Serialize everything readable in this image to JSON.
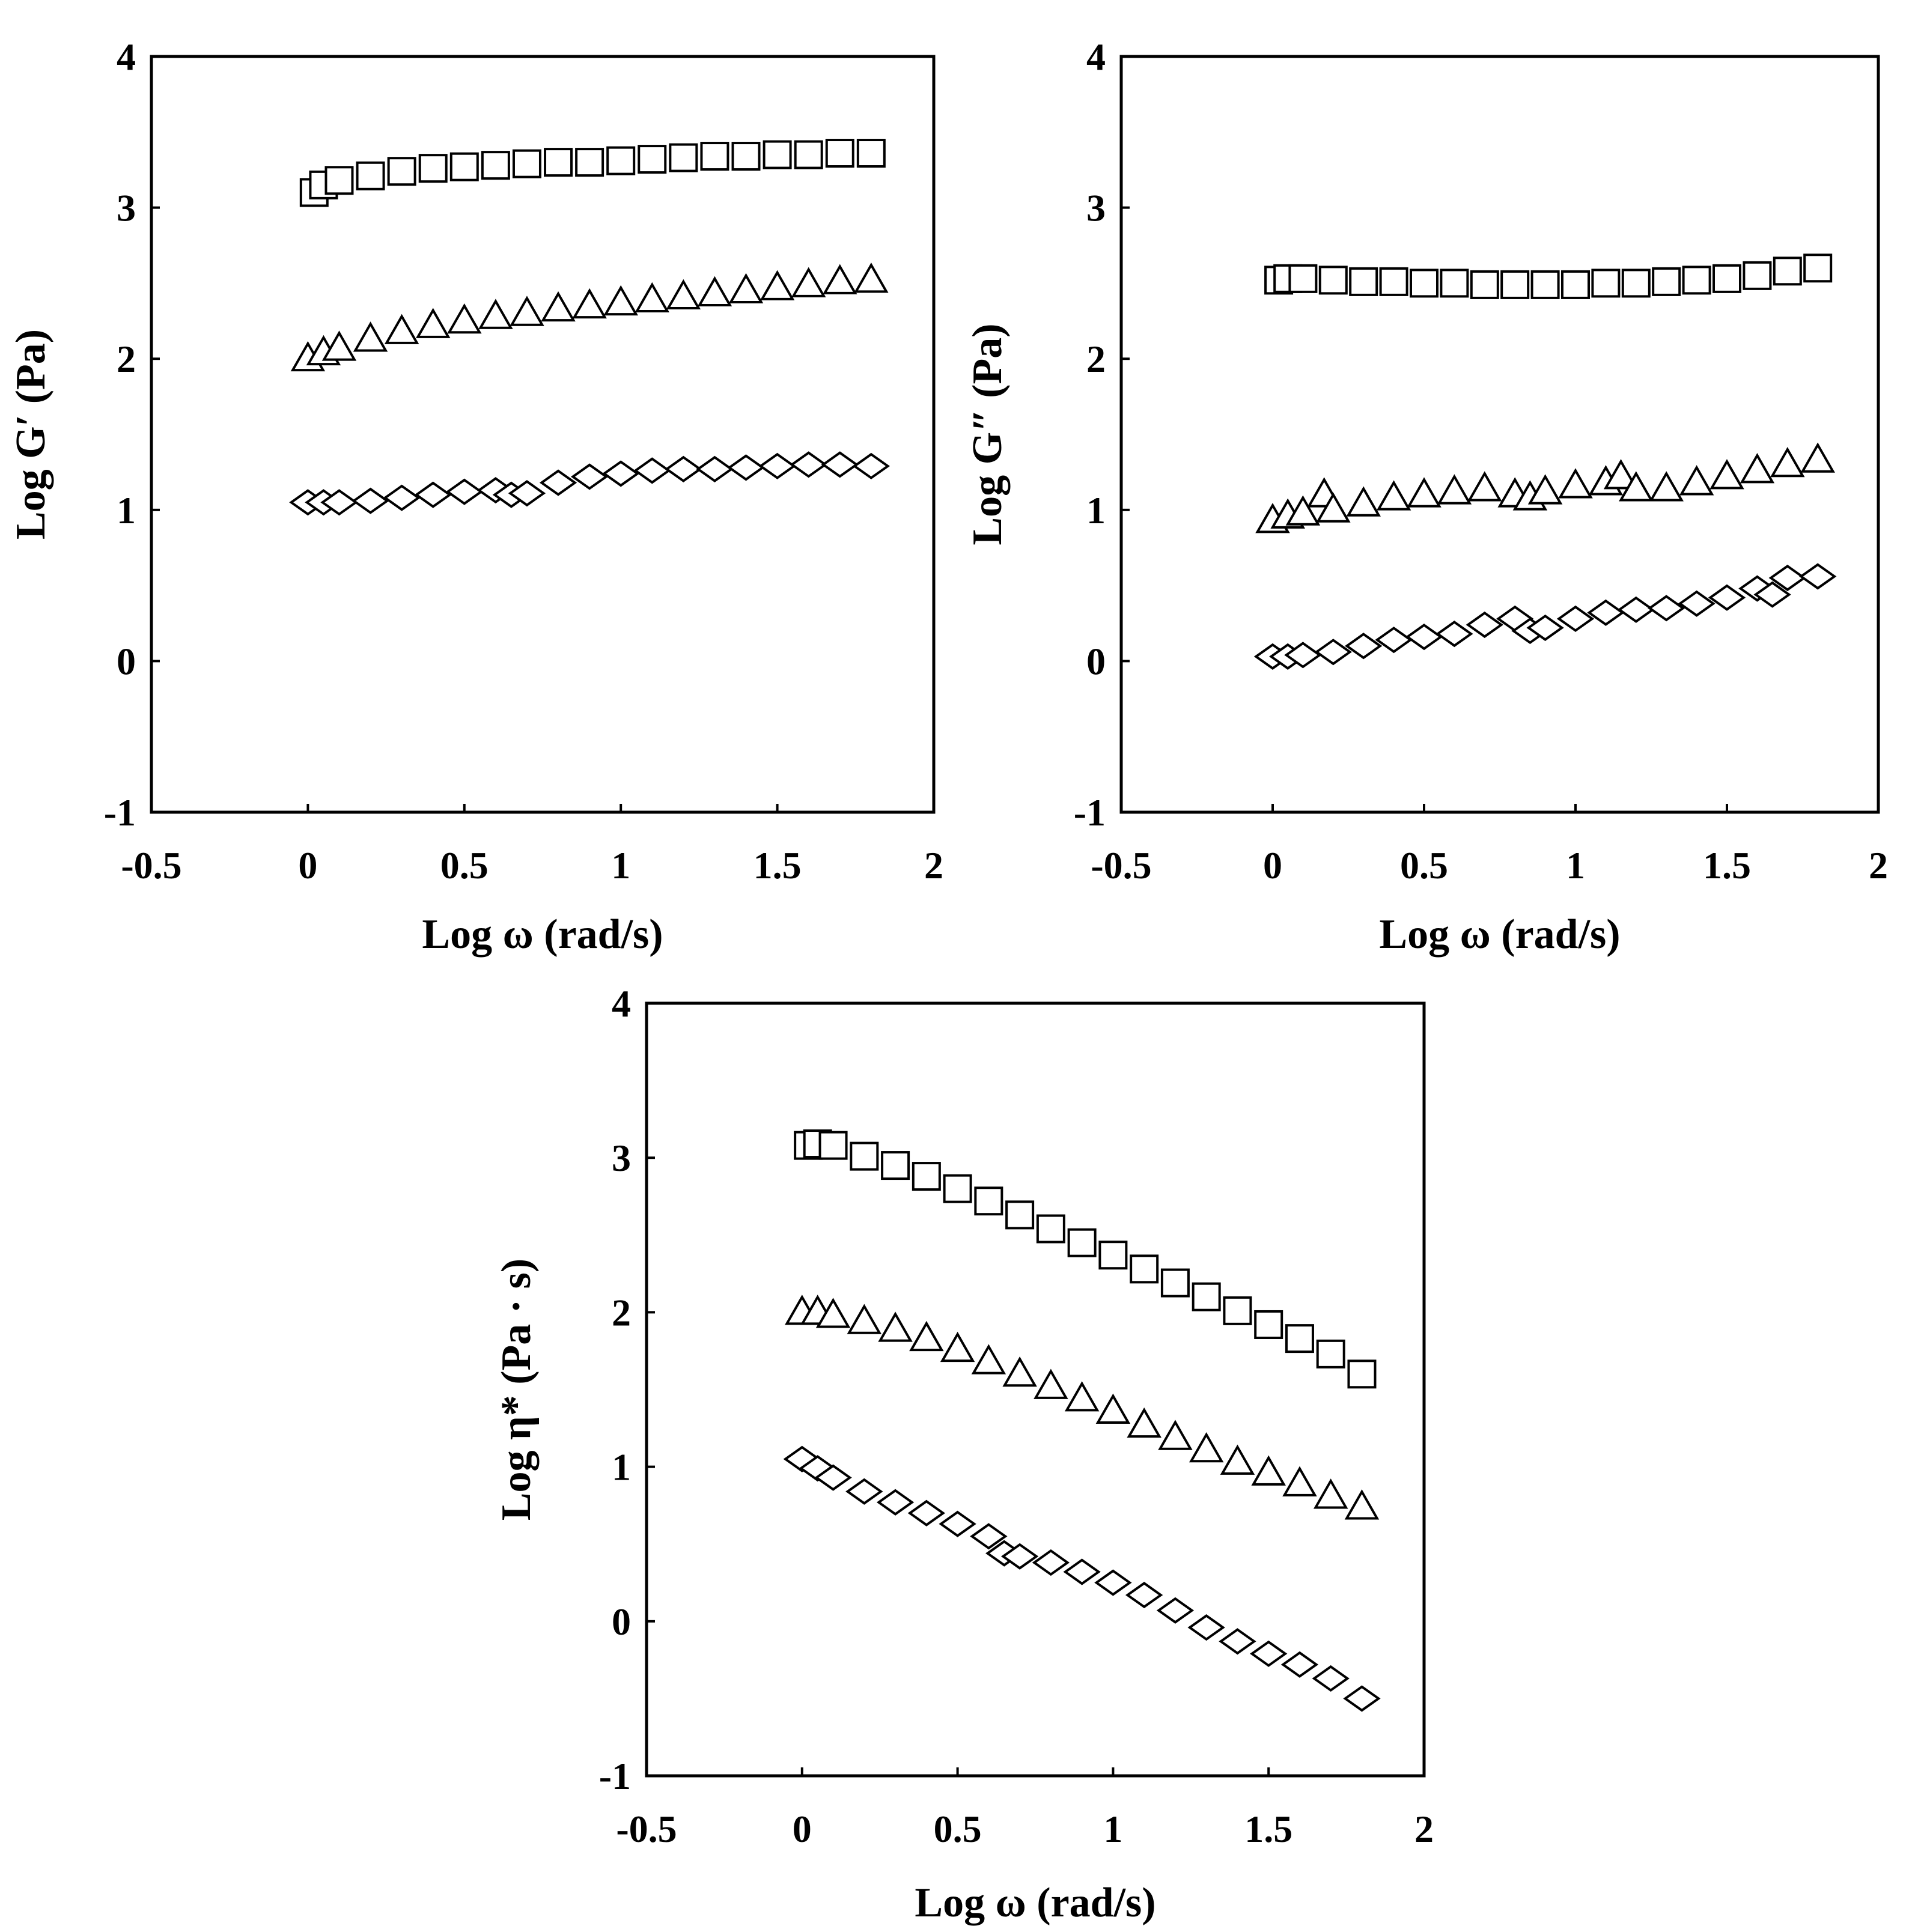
{
  "chart_data": [
    {
      "type": "scatter",
      "title": "",
      "xlabel": "Log ω (rad/s)",
      "ylabel": "Log G′ (Pa)",
      "xlim": [
        -0.5,
        2
      ],
      "ylim": [
        -1,
        4
      ],
      "xticks": [
        "-0.5",
        "0",
        "0.5",
        "1",
        "1.5",
        "2"
      ],
      "yticks": [
        "-1",
        "0",
        "1",
        "2",
        "3",
        "4"
      ],
      "grid": false,
      "series": [
        {
          "marker": "square",
          "points": [
            [
              0.02,
              3.1
            ],
            [
              0.05,
              3.15
            ],
            [
              0.1,
              3.18
            ],
            [
              0.2,
              3.21
            ],
            [
              0.3,
              3.24
            ],
            [
              0.4,
              3.26
            ],
            [
              0.5,
              3.27
            ],
            [
              0.6,
              3.28
            ],
            [
              0.7,
              3.29
            ],
            [
              0.8,
              3.3
            ],
            [
              0.9,
              3.3
            ],
            [
              1.0,
              3.31
            ],
            [
              1.1,
              3.32
            ],
            [
              1.2,
              3.33
            ],
            [
              1.3,
              3.34
            ],
            [
              1.4,
              3.34
            ],
            [
              1.5,
              3.35
            ],
            [
              1.6,
              3.35
            ],
            [
              1.7,
              3.36
            ],
            [
              1.8,
              3.36
            ]
          ]
        },
        {
          "marker": "triangle",
          "points": [
            [
              0.0,
              2.0
            ],
            [
              0.05,
              2.04
            ],
            [
              0.1,
              2.07
            ],
            [
              0.2,
              2.13
            ],
            [
              0.3,
              2.18
            ],
            [
              0.4,
              2.22
            ],
            [
              0.5,
              2.25
            ],
            [
              0.6,
              2.28
            ],
            [
              0.7,
              2.3
            ],
            [
              0.8,
              2.33
            ],
            [
              0.9,
              2.35
            ],
            [
              1.0,
              2.37
            ],
            [
              1.1,
              2.39
            ],
            [
              1.2,
              2.41
            ],
            [
              1.3,
              2.43
            ],
            [
              1.4,
              2.45
            ],
            [
              1.5,
              2.47
            ],
            [
              1.6,
              2.49
            ],
            [
              1.7,
              2.51
            ],
            [
              1.8,
              2.52
            ]
          ]
        },
        {
          "marker": "diamond",
          "points": [
            [
              0.0,
              1.05
            ],
            [
              0.05,
              1.05
            ],
            [
              0.1,
              1.05
            ],
            [
              0.2,
              1.06
            ],
            [
              0.3,
              1.08
            ],
            [
              0.4,
              1.1
            ],
            [
              0.5,
              1.12
            ],
            [
              0.6,
              1.13
            ],
            [
              0.65,
              1.1
            ],
            [
              0.7,
              1.11
            ],
            [
              0.8,
              1.18
            ],
            [
              0.9,
              1.22
            ],
            [
              1.0,
              1.24
            ],
            [
              1.1,
              1.26
            ],
            [
              1.2,
              1.27
            ],
            [
              1.3,
              1.27
            ],
            [
              1.4,
              1.28
            ],
            [
              1.5,
              1.29
            ],
            [
              1.6,
              1.3
            ],
            [
              1.7,
              1.3
            ],
            [
              1.8,
              1.29
            ]
          ]
        }
      ]
    },
    {
      "type": "scatter",
      "title": "",
      "xlabel": "Log ω (rad/s)",
      "ylabel": "Log G″ (Pa)",
      "xlim": [
        -0.5,
        2
      ],
      "ylim": [
        -1,
        4
      ],
      "xticks": [
        "-0.5",
        "0",
        "0.5",
        "1",
        "1.5",
        "2"
      ],
      "yticks": [
        "-1",
        "0",
        "1",
        "2",
        "3",
        "4"
      ],
      "grid": false,
      "series": [
        {
          "marker": "square",
          "points": [
            [
              0.02,
              2.52
            ],
            [
              0.05,
              2.53
            ],
            [
              0.1,
              2.53
            ],
            [
              0.2,
              2.52
            ],
            [
              0.3,
              2.51
            ],
            [
              0.4,
              2.51
            ],
            [
              0.5,
              2.5
            ],
            [
              0.6,
              2.5
            ],
            [
              0.7,
              2.49
            ],
            [
              0.8,
              2.49
            ],
            [
              0.9,
              2.49
            ],
            [
              1.0,
              2.49
            ],
            [
              1.1,
              2.5
            ],
            [
              1.2,
              2.5
            ],
            [
              1.3,
              2.51
            ],
            [
              1.4,
              2.52
            ],
            [
              1.5,
              2.53
            ],
            [
              1.6,
              2.55
            ],
            [
              1.7,
              2.58
            ],
            [
              1.8,
              2.6
            ]
          ]
        },
        {
          "marker": "triangle",
          "points": [
            [
              0.0,
              0.93
            ],
            [
              0.05,
              0.96
            ],
            [
              0.1,
              0.98
            ],
            [
              0.17,
              1.1
            ],
            [
              0.2,
              1.0
            ],
            [
              0.3,
              1.04
            ],
            [
              0.4,
              1.08
            ],
            [
              0.5,
              1.1
            ],
            [
              0.6,
              1.12
            ],
            [
              0.7,
              1.14
            ],
            [
              0.8,
              1.1
            ],
            [
              0.85,
              1.08
            ],
            [
              0.9,
              1.12
            ],
            [
              1.0,
              1.16
            ],
            [
              1.1,
              1.18
            ],
            [
              1.15,
              1.22
            ],
            [
              1.2,
              1.14
            ],
            [
              1.3,
              1.14
            ],
            [
              1.4,
              1.18
            ],
            [
              1.5,
              1.22
            ],
            [
              1.6,
              1.26
            ],
            [
              1.7,
              1.3
            ],
            [
              1.8,
              1.33
            ]
          ]
        },
        {
          "marker": "diamond",
          "points": [
            [
              0.0,
              0.03
            ],
            [
              0.05,
              0.03
            ],
            [
              0.1,
              0.04
            ],
            [
              0.2,
              0.06
            ],
            [
              0.3,
              0.1
            ],
            [
              0.4,
              0.14
            ],
            [
              0.5,
              0.16
            ],
            [
              0.6,
              0.18
            ],
            [
              0.7,
              0.24
            ],
            [
              0.8,
              0.28
            ],
            [
              0.85,
              0.2
            ],
            [
              0.9,
              0.22
            ],
            [
              1.0,
              0.28
            ],
            [
              1.1,
              0.32
            ],
            [
              1.2,
              0.34
            ],
            [
              1.3,
              0.35
            ],
            [
              1.4,
              0.38
            ],
            [
              1.5,
              0.42
            ],
            [
              1.6,
              0.48
            ],
            [
              1.65,
              0.44
            ],
            [
              1.7,
              0.55
            ],
            [
              1.8,
              0.56
            ]
          ]
        }
      ]
    },
    {
      "type": "scatter",
      "title": "",
      "xlabel": "Log ω (rad/s)",
      "ylabel": "Log η* (Pa · s)",
      "xlim": [
        -0.5,
        2
      ],
      "ylim": [
        -1,
        4
      ],
      "xticks": [
        "-0.5",
        "0",
        "0.5",
        "1",
        "1.5",
        "2"
      ],
      "yticks": [
        "-1",
        "0",
        "1",
        "2",
        "3",
        "4"
      ],
      "grid": false,
      "series": [
        {
          "marker": "square",
          "points": [
            [
              0.02,
              3.08
            ],
            [
              0.05,
              3.09
            ],
            [
              0.1,
              3.08
            ],
            [
              0.2,
              3.01
            ],
            [
              0.3,
              2.95
            ],
            [
              0.4,
              2.88
            ],
            [
              0.5,
              2.8
            ],
            [
              0.6,
              2.72
            ],
            [
              0.7,
              2.63
            ],
            [
              0.8,
              2.54
            ],
            [
              0.9,
              2.45
            ],
            [
              1.0,
              2.37
            ],
            [
              1.1,
              2.28
            ],
            [
              1.2,
              2.19
            ],
            [
              1.3,
              2.1
            ],
            [
              1.4,
              2.01
            ],
            [
              1.5,
              1.92
            ],
            [
              1.6,
              1.83
            ],
            [
              1.7,
              1.73
            ],
            [
              1.8,
              1.6
            ]
          ]
        },
        {
          "marker": "triangle",
          "points": [
            [
              0.0,
              2.0
            ],
            [
              0.05,
              2.0
            ],
            [
              0.1,
              1.98
            ],
            [
              0.2,
              1.94
            ],
            [
              0.3,
              1.89
            ],
            [
              0.4,
              1.83
            ],
            [
              0.5,
              1.76
            ],
            [
              0.6,
              1.68
            ],
            [
              0.7,
              1.6
            ],
            [
              0.8,
              1.52
            ],
            [
              0.9,
              1.44
            ],
            [
              1.0,
              1.36
            ],
            [
              1.1,
              1.27
            ],
            [
              1.2,
              1.19
            ],
            [
              1.3,
              1.11
            ],
            [
              1.4,
              1.03
            ],
            [
              1.5,
              0.96
            ],
            [
              1.6,
              0.89
            ],
            [
              1.7,
              0.81
            ],
            [
              1.8,
              0.74
            ]
          ]
        },
        {
          "marker": "diamond",
          "points": [
            [
              0.0,
              1.05
            ],
            [
              0.05,
              0.99
            ],
            [
              0.1,
              0.93
            ],
            [
              0.2,
              0.84
            ],
            [
              0.3,
              0.77
            ],
            [
              0.4,
              0.7
            ],
            [
              0.5,
              0.63
            ],
            [
              0.6,
              0.55
            ],
            [
              0.65,
              0.44
            ],
            [
              0.7,
              0.42
            ],
            [
              0.8,
              0.38
            ],
            [
              0.9,
              0.32
            ],
            [
              1.0,
              0.25
            ],
            [
              1.1,
              0.17
            ],
            [
              1.2,
              0.07
            ],
            [
              1.3,
              -0.04
            ],
            [
              1.4,
              -0.13
            ],
            [
              1.5,
              -0.21
            ],
            [
              1.6,
              -0.28
            ],
            [
              1.7,
              -0.37
            ],
            [
              1.8,
              -0.5
            ]
          ]
        }
      ]
    }
  ]
}
